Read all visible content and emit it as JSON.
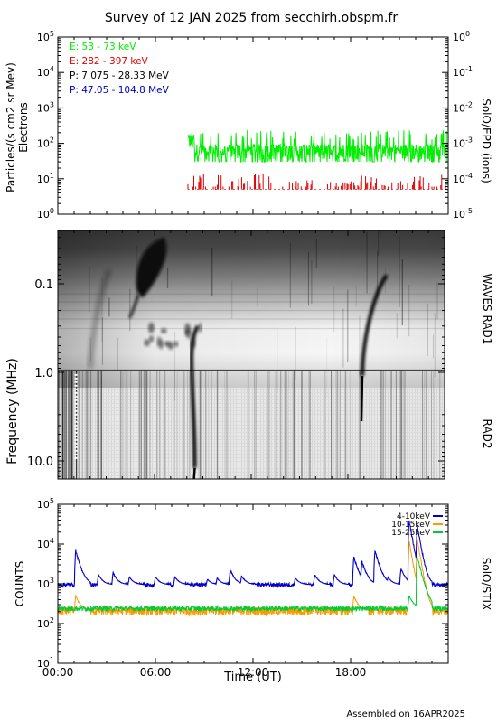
{
  "title": "Survey of 12 JAN 2025 from secchirh.obspm.fr",
  "footer": "Assembled on 16APR2025",
  "chart_data": [
    {
      "type": "line",
      "panel": "particles",
      "ylabel_left_lines": [
        "Particles/(s cm2 sr Mev)",
        "Electrons"
      ],
      "ylabel_right": "SolO/EPD (ions)",
      "yscale": "log",
      "ylim": [
        1,
        100000
      ],
      "yticks": [
        "10^0",
        "10^1",
        "10^2",
        "10^3",
        "10^4",
        "10^5"
      ],
      "y2lim": [
        1e-05,
        1
      ],
      "y2ticks": [
        "10^-5",
        "10^-4",
        "10^-3",
        "10^-2",
        "10^-1",
        "10^0"
      ],
      "xlim_hours": [
        0,
        24
      ],
      "legend": "top-left",
      "series": [
        {
          "name": "E: 53 - 73 keV",
          "color": "#00ee00",
          "data_start_h": 8.0,
          "data_end_h": 24.0,
          "typical": 55,
          "min": 30,
          "max": 240
        },
        {
          "name": "E: 282 - 397 keV",
          "color": "#dd0000",
          "data_start_h": 8.0,
          "data_end_h": 24.0,
          "typical": 5,
          "min": 5,
          "max": 14
        },
        {
          "name": "P: 7.075 - 28.33 MeV",
          "color": "#000000"
        },
        {
          "name": "P: 47.05 - 104.8 MeV",
          "color": "#0000bb"
        }
      ]
    },
    {
      "type": "heatmap",
      "panel": "radio",
      "ylabel": "Frequency (MHz)",
      "yscale": "log",
      "yticks": [
        "0.1",
        "1.0",
        "10.0"
      ],
      "ylim_mhz": [
        0.025,
        16
      ],
      "right_labels": [
        "WAVES RAD1",
        "RAD2"
      ],
      "band_boundary_mhz": 0.95,
      "xlim_hours": [
        0,
        24
      ],
      "colormap": "grayscale (dark = intense)",
      "bursts": [
        {
          "start_h": 4.9,
          "end_h": 6.6,
          "f_start_mhz": 0.12,
          "f_end_mhz": 0.03,
          "kind": "blob"
        },
        {
          "start_h": 2.0,
          "end_h": 3.2,
          "f_start_mhz": 0.9,
          "f_end_mhz": 0.07,
          "kind": "faint drift"
        },
        {
          "start_h": 18.9,
          "end_h": 20.4,
          "f_start_mhz": 1.1,
          "f_end_mhz": 0.08,
          "kind": "type III"
        },
        {
          "start_h": 8.5,
          "end_h": 8.7,
          "f_start_mhz": 12,
          "f_end_mhz": 0.3,
          "kind": "type III"
        }
      ]
    },
    {
      "type": "line",
      "panel": "xray",
      "ylabel": "COUNTS",
      "ylabel_right": "SolO/STIX",
      "yscale": "log",
      "ylim": [
        10,
        100000
      ],
      "yticks": [
        "10^1",
        "10^2",
        "10^3",
        "10^4",
        "10^5"
      ],
      "xlim_hours": [
        0,
        24
      ],
      "xticks": [
        "00:00",
        "06:00",
        "12:00",
        "18:00"
      ],
      "xlabel": "Time (UT)",
      "legend": "top-right",
      "series": [
        {
          "name": "4-10keV",
          "color": "#0000cc",
          "baseline": 950,
          "peaks": [
            [
              1.1,
              7000
            ],
            [
              2.5,
              1700
            ],
            [
              3.4,
              1900
            ],
            [
              4.4,
              1500
            ],
            [
              6.0,
              1500
            ],
            [
              7.2,
              1500
            ],
            [
              9.2,
              1300
            ],
            [
              9.8,
              1400
            ],
            [
              10.6,
              2300
            ],
            [
              11.3,
              1600
            ],
            [
              14.6,
              1400
            ],
            [
              15.8,
              1700
            ],
            [
              17.0,
              1700
            ],
            [
              18.2,
              4800
            ],
            [
              18.7,
              3700
            ],
            [
              19.5,
              7000
            ],
            [
              20.3,
              1500
            ],
            [
              21.1,
              2500
            ],
            [
              21.6,
              40000
            ],
            [
              22.1,
              30000
            ]
          ]
        },
        {
          "name": "10-15keV",
          "color": "#ff9900",
          "baseline": 210,
          "peaks": [
            [
              1.1,
              500
            ],
            [
              18.2,
              500
            ],
            [
              21.6,
              12000
            ],
            [
              22.1,
              13000
            ]
          ]
        },
        {
          "name": "15-25keV",
          "color": "#00cc33",
          "baseline": 240,
          "peaks": [
            [
              21.6,
              500
            ],
            [
              22.1,
              5000
            ]
          ]
        }
      ]
    }
  ]
}
